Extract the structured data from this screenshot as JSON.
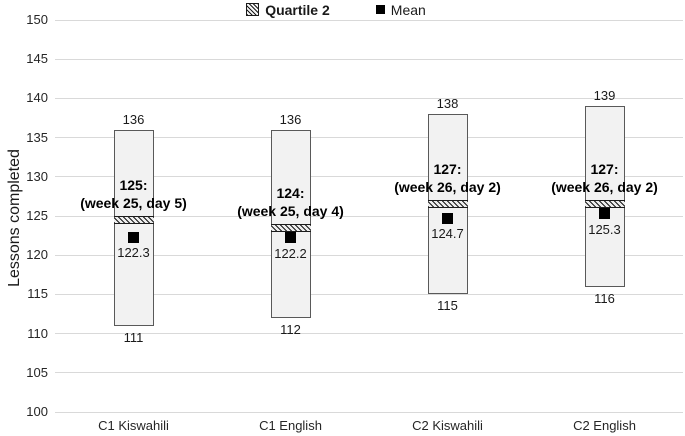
{
  "colors": {
    "bar_fill": "#f2f2f2",
    "bar_border": "#595959",
    "gridline": "#d9d9d9",
    "hatch": "#1a1a1a",
    "mean_marker": "#000000",
    "text": "#1a1a1a"
  },
  "legend": {
    "items": [
      {
        "label": "Quartile 2",
        "marker": "hatched-square"
      },
      {
        "label": "Mean",
        "marker": "filled-square"
      }
    ]
  },
  "chart_data": {
    "type": "bar",
    "subtype": "floating-range-boxes-with-quartile-band-and-mean",
    "title": "",
    "xlabel": "",
    "ylabel": "Lessons completed",
    "ylim": [
      100,
      150
    ],
    "yticks": [
      100,
      105,
      110,
      115,
      120,
      125,
      130,
      135,
      140,
      145,
      150
    ],
    "grid": true,
    "legend_position": "top-center",
    "categories": [
      "C1 Kiswahili",
      "C1 English",
      "C2 Kiswahili",
      "C2 English"
    ],
    "bars": [
      {
        "category": "C1 Kiswahili",
        "min": 111,
        "max": 136,
        "quartile2": 125,
        "mean": 122.3,
        "min_label": "111",
        "max_label": "136",
        "mean_label": "122.3",
        "annotation_line1": "125:",
        "annotation_line2": "(week 25, day 5)"
      },
      {
        "category": "C1 English",
        "min": 112,
        "max": 136,
        "quartile2": 124,
        "mean": 122.2,
        "min_label": "112",
        "max_label": "136",
        "mean_label": "122.2",
        "annotation_line1": "124:",
        "annotation_line2": "(week 25, day 4)"
      },
      {
        "category": "C2 Kiswahili",
        "min": 115,
        "max": 138,
        "quartile2": 127,
        "mean": 124.7,
        "min_label": "115",
        "max_label": "138",
        "mean_label": "124.7",
        "annotation_line1": "127:",
        "annotation_line2": "(week 26, day 2)"
      },
      {
        "category": "C2 English",
        "min": 116,
        "max": 139,
        "quartile2": 127,
        "mean": 125.3,
        "min_label": "116",
        "max_label": "139",
        "mean_label": "125.3",
        "annotation_line1": "127:",
        "annotation_line2": "(week 26, day 2)"
      }
    ]
  }
}
